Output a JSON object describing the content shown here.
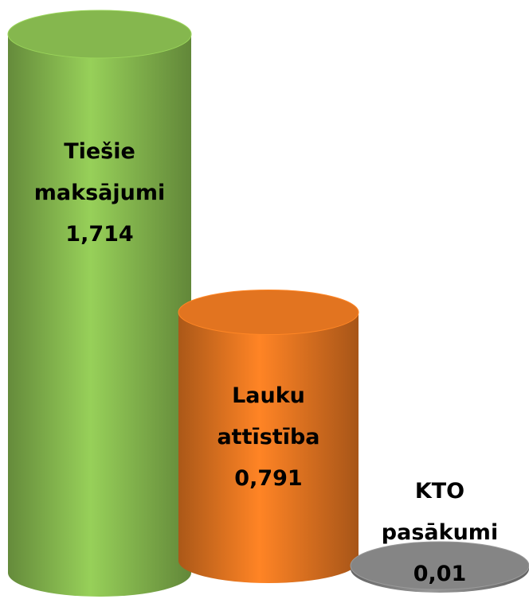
{
  "chart_data": {
    "type": "bar",
    "categories": [
      "Tiešie maksājumi",
      "Lauku attīstība",
      "KTO pasākumi"
    ],
    "values": [
      1.714,
      0.791,
      0.01
    ],
    "value_labels": [
      "1,714",
      "0,791",
      "0,01"
    ],
    "colors": [
      "#8cc152",
      "#ee7a22",
      "#8c8c8c"
    ]
  }
}
